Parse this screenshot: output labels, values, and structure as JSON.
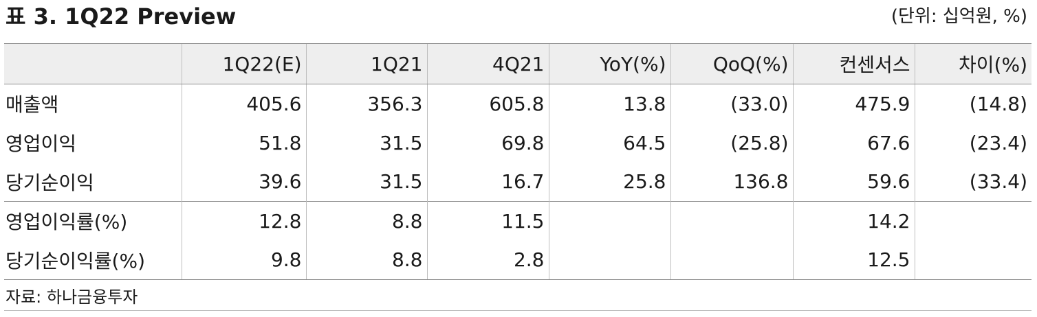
{
  "title": "표 3. 1Q22 Preview",
  "unit": "(단위: 십억원, %)",
  "table": {
    "headers": [
      "",
      "1Q22(E)",
      "1Q21",
      "4Q21",
      "YoY(%)",
      "QoQ(%)",
      "컨센서스",
      "차이(%)"
    ],
    "rows": [
      [
        "매출액",
        "405.6",
        "356.3",
        "605.8",
        "13.8",
        "(33.0)",
        "475.9",
        "(14.8)"
      ],
      [
        "영업이익",
        "51.8",
        "31.5",
        "69.8",
        "64.5",
        "(25.8)",
        "67.6",
        "(23.4)"
      ],
      [
        "당기순이익",
        "39.6",
        "31.5",
        "16.7",
        "25.8",
        "136.8",
        "59.6",
        "(33.4)"
      ],
      [
        "영업이익률(%)",
        "12.8",
        "8.8",
        "11.5",
        "",
        "",
        "14.2",
        ""
      ],
      [
        "당기순이익률(%)",
        "9.8",
        "8.8",
        "2.8",
        "",
        "",
        "12.5",
        ""
      ]
    ]
  },
  "source": "자료: 하나금융투자"
}
